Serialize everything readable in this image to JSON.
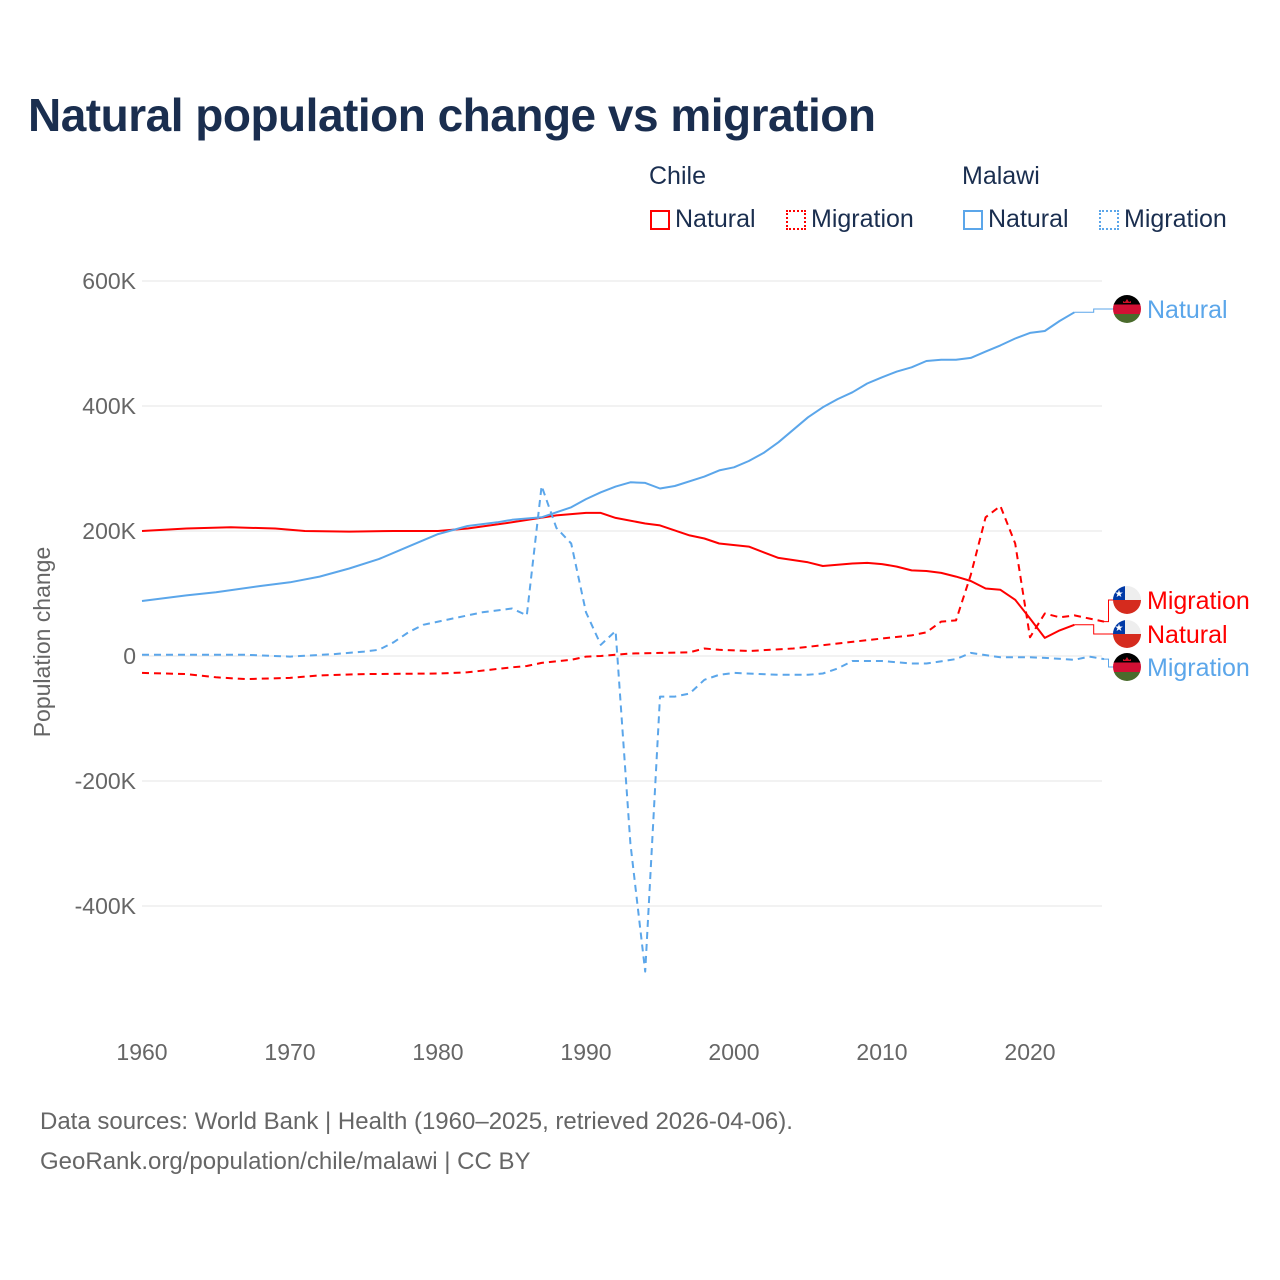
{
  "chart_data": {
    "type": "line",
    "title": "Natural population change vs migration",
    "ylabel": "Population change",
    "xlabel": "",
    "xlim": [
      1960,
      2025
    ],
    "ylim": [
      -550000,
      650000
    ],
    "x_ticks": [
      1960,
      1970,
      1980,
      1990,
      2000,
      2010,
      2020
    ],
    "x_tick_labels": [
      "1960",
      "1970",
      "1980",
      "1990",
      "2000",
      "2010",
      "2020"
    ],
    "y_ticks": [
      600000,
      400000,
      200000,
      0,
      -200000,
      -400000
    ],
    "y_tick_labels": [
      "600K",
      "400K",
      "200K",
      "0",
      "-200K",
      "-400K"
    ],
    "grid": true,
    "legend": {
      "placement": "top-right",
      "groups": [
        {
          "name": "Chile",
          "items": [
            "Natural",
            "Migration"
          ]
        },
        {
          "name": "Malawi",
          "items": [
            "Natural",
            "Migration"
          ]
        }
      ]
    },
    "series": [
      {
        "id": "chile-natural",
        "country": "Chile",
        "name": "Natural",
        "color": "#ff0000",
        "dash": false,
        "end_label": "Natural",
        "points": [
          [
            1960,
            200
          ],
          [
            1963,
            204
          ],
          [
            1966,
            206
          ],
          [
            1969,
            204
          ],
          [
            1971,
            200
          ],
          [
            1974,
            199
          ],
          [
            1977,
            200
          ],
          [
            1980,
            200
          ],
          [
            1982,
            204
          ],
          [
            1985,
            214
          ],
          [
            1988,
            225
          ],
          [
            1990,
            229
          ],
          [
            1991,
            229
          ],
          [
            1992,
            221
          ],
          [
            1994,
            212
          ],
          [
            1995,
            209
          ],
          [
            1997,
            193
          ],
          [
            1998,
            188
          ],
          [
            1999,
            180
          ],
          [
            2001,
            175
          ],
          [
            2002,
            166
          ],
          [
            2003,
            157
          ],
          [
            2005,
            150
          ],
          [
            2006,
            144
          ],
          [
            2008,
            148
          ],
          [
            2009,
            149
          ],
          [
            2010,
            147
          ],
          [
            2011,
            143
          ],
          [
            2012,
            137
          ],
          [
            2013,
            136
          ],
          [
            2014,
            133
          ],
          [
            2015,
            127
          ],
          [
            2016,
            120
          ],
          [
            2017,
            108
          ],
          [
            2018,
            106
          ],
          [
            2019,
            90
          ],
          [
            2020,
            60
          ],
          [
            2021,
            29
          ],
          [
            2022,
            41
          ],
          [
            2023,
            50
          ]
        ]
      },
      {
        "id": "chile-migration",
        "country": "Chile",
        "name": "Migration",
        "color": "#ff0000",
        "dash": true,
        "end_label": "Migration",
        "points": [
          [
            1960,
            -27
          ],
          [
            1963,
            -29
          ],
          [
            1965,
            -34
          ],
          [
            1967,
            -37
          ],
          [
            1970,
            -35
          ],
          [
            1972,
            -31
          ],
          [
            1975,
            -29
          ],
          [
            1980,
            -28
          ],
          [
            1982,
            -26
          ],
          [
            1985,
            -18
          ],
          [
            1986,
            -16
          ],
          [
            1987,
            -11
          ],
          [
            1989,
            -6
          ],
          [
            1990,
            -1
          ],
          [
            1991,
            0
          ],
          [
            1993,
            4
          ],
          [
            1995,
            5
          ],
          [
            1997,
            6
          ],
          [
            1998,
            12
          ],
          [
            1999,
            10
          ],
          [
            2001,
            8
          ],
          [
            2004,
            12
          ],
          [
            2007,
            20
          ],
          [
            2010,
            28
          ],
          [
            2012,
            33
          ],
          [
            2013,
            38
          ],
          [
            2014,
            55
          ],
          [
            2015,
            57
          ],
          [
            2016,
            130
          ],
          [
            2017,
            222
          ],
          [
            2018,
            240
          ],
          [
            2019,
            180
          ],
          [
            2020,
            30
          ],
          [
            2021,
            68
          ],
          [
            2022,
            62
          ],
          [
            2023,
            65
          ],
          [
            2024,
            60
          ],
          [
            2025,
            55
          ]
        ]
      },
      {
        "id": "malawi-natural",
        "country": "Malawi",
        "name": "Natural",
        "color": "#5ba6ea",
        "dash": false,
        "end_label": "Natural",
        "points": [
          [
            1960,
            88
          ],
          [
            1963,
            97
          ],
          [
            1965,
            102
          ],
          [
            1968,
            112
          ],
          [
            1970,
            118
          ],
          [
            1972,
            127
          ],
          [
            1974,
            140
          ],
          [
            1976,
            155
          ],
          [
            1978,
            175
          ],
          [
            1980,
            195
          ],
          [
            1982,
            208
          ],
          [
            1984,
            214
          ],
          [
            1985,
            218
          ],
          [
            1987,
            222
          ],
          [
            1989,
            238
          ],
          [
            1990,
            251
          ],
          [
            1991,
            262
          ],
          [
            1992,
            271
          ],
          [
            1993,
            278
          ],
          [
            1994,
            277
          ],
          [
            1995,
            268
          ],
          [
            1996,
            272
          ],
          [
            1998,
            287
          ],
          [
            1999,
            297
          ],
          [
            2000,
            302
          ],
          [
            2001,
            312
          ],
          [
            2002,
            325
          ],
          [
            2003,
            342
          ],
          [
            2004,
            362
          ],
          [
            2005,
            382
          ],
          [
            2006,
            398
          ],
          [
            2007,
            411
          ],
          [
            2008,
            422
          ],
          [
            2009,
            436
          ],
          [
            2010,
            446
          ],
          [
            2011,
            455
          ],
          [
            2012,
            462
          ],
          [
            2013,
            472
          ],
          [
            2014,
            474
          ],
          [
            2015,
            474
          ],
          [
            2016,
            477
          ],
          [
            2017,
            487
          ],
          [
            2018,
            497
          ],
          [
            2019,
            508
          ],
          [
            2020,
            517
          ],
          [
            2021,
            520
          ],
          [
            2022,
            536
          ],
          [
            2023,
            550
          ]
        ]
      },
      {
        "id": "malawi-migration",
        "country": "Malawi",
        "name": "Migration",
        "color": "#5ba6ea",
        "dash": true,
        "end_label": "Migration",
        "points": [
          [
            1960,
            2
          ],
          [
            1967,
            2
          ],
          [
            1970,
            -1
          ],
          [
            1973,
            3
          ],
          [
            1975,
            7
          ],
          [
            1976,
            10
          ],
          [
            1977,
            22
          ],
          [
            1978,
            38
          ],
          [
            1979,
            50
          ],
          [
            1981,
            60
          ],
          [
            1983,
            70
          ],
          [
            1985,
            76
          ],
          [
            1986,
            65
          ],
          [
            1987,
            272
          ],
          [
            1988,
            205
          ],
          [
            1989,
            180
          ],
          [
            1990,
            70
          ],
          [
            1991,
            18
          ],
          [
            1992,
            40
          ],
          [
            1993,
            -300
          ],
          [
            1994,
            -505
          ],
          [
            1995,
            -65
          ],
          [
            1996,
            -65
          ],
          [
            1997,
            -60
          ],
          [
            1998,
            -38
          ],
          [
            1999,
            -30
          ],
          [
            2000,
            -27
          ],
          [
            2003,
            -30
          ],
          [
            2005,
            -30
          ],
          [
            2006,
            -28
          ],
          [
            2007,
            -20
          ],
          [
            2008,
            -8
          ],
          [
            2010,
            -8
          ],
          [
            2012,
            -12
          ],
          [
            2013,
            -12
          ],
          [
            2015,
            -5
          ],
          [
            2016,
            5
          ],
          [
            2018,
            -2
          ],
          [
            2020,
            -2
          ],
          [
            2021,
            -3
          ],
          [
            2023,
            -6
          ],
          [
            2024,
            -1
          ],
          [
            2025,
            -5
          ]
        ]
      }
    ],
    "value_unit": "thousands"
  },
  "legend": {
    "chile": "Chile",
    "malawi": "Malawi",
    "natural": "Natural",
    "migration": "Migration"
  },
  "footer": {
    "source": "Data sources: World Bank | Health (1960–2025, retrieved 2026-04-06).",
    "credit": "GeoRank.org/population/chile/malawi | CC BY"
  },
  "colors": {
    "chile": "#ff0000",
    "malawi": "#5ba6ea",
    "title": "#1a2e4f",
    "grid": "#e6e6e6",
    "axis_text": "#666666"
  }
}
